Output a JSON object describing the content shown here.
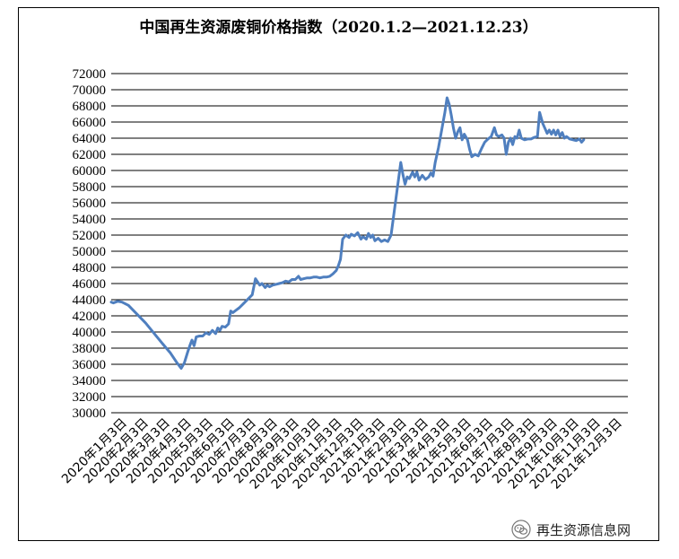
{
  "chart_data": {
    "type": "line",
    "title": "中国再生资源废铜价格指数（2020.1.2—2021.12.23）",
    "ylim": [
      30000,
      72000
    ],
    "yticks": [
      30000,
      32000,
      34000,
      36000,
      38000,
      40000,
      42000,
      44000,
      46000,
      48000,
      50000,
      52000,
      54000,
      56000,
      58000,
      60000,
      62000,
      64000,
      66000,
      68000,
      70000,
      72000
    ],
    "grid": true,
    "legend": "none",
    "line_color": "#4f7fbf",
    "categories": [
      "2020年1月3日",
      "2020年2月3日",
      "2020年3月3日",
      "2020年4月3日",
      "2020年5月3日",
      "2020年6月3日",
      "2020年7月3日",
      "2020年8月3日",
      "2020年9月3日",
      "2020年10月3日",
      "2020年11月3日",
      "2020年12月3日",
      "2021年1月3日",
      "2021年2月3日",
      "2021年3月3日",
      "2021年4月3日",
      "2021年5月3日",
      "2021年6月3日",
      "2021年7月3日",
      "2021年8月3日",
      "2021年9月3日",
      "2021年10月3日",
      "2021年11月3日",
      "2021年12月3日"
    ],
    "series": [
      {
        "values": [
          [
            0.0,
            43700
          ],
          [
            0.1,
            43600
          ],
          [
            0.3,
            43800
          ],
          [
            0.5,
            43700
          ],
          [
            0.8,
            43300
          ],
          [
            1.2,
            42200
          ],
          [
            1.6,
            41100
          ],
          [
            2.0,
            39800
          ],
          [
            2.4,
            38500
          ],
          [
            2.75,
            37400
          ],
          [
            3.05,
            36200
          ],
          [
            3.25,
            35500
          ],
          [
            3.4,
            36200
          ],
          [
            3.55,
            37500
          ],
          [
            3.65,
            38300
          ],
          [
            3.75,
            39000
          ],
          [
            3.85,
            38300
          ],
          [
            3.95,
            39400
          ],
          [
            4.1,
            39500
          ],
          [
            4.25,
            39500
          ],
          [
            4.4,
            39900
          ],
          [
            4.55,
            39700
          ],
          [
            4.7,
            40200
          ],
          [
            4.85,
            39800
          ],
          [
            4.95,
            40500
          ],
          [
            5.05,
            40200
          ],
          [
            5.15,
            40700
          ],
          [
            5.3,
            40600
          ],
          [
            5.45,
            41000
          ],
          [
            5.55,
            42600
          ],
          [
            5.65,
            42400
          ],
          [
            5.8,
            42700
          ],
          [
            5.95,
            43000
          ],
          [
            6.1,
            43400
          ],
          [
            6.25,
            43800
          ],
          [
            6.4,
            44200
          ],
          [
            6.55,
            44600
          ],
          [
            6.7,
            46600
          ],
          [
            6.8,
            46200
          ],
          [
            6.9,
            45800
          ],
          [
            7.0,
            46000
          ],
          [
            7.15,
            45500
          ],
          [
            7.25,
            45800
          ],
          [
            7.35,
            45600
          ],
          [
            7.5,
            45800
          ],
          [
            7.65,
            45900
          ],
          [
            7.8,
            46000
          ],
          [
            7.95,
            46100
          ],
          [
            8.1,
            46300
          ],
          [
            8.25,
            46200
          ],
          [
            8.4,
            46500
          ],
          [
            8.55,
            46500
          ],
          [
            8.7,
            46900
          ],
          [
            8.8,
            46500
          ],
          [
            8.95,
            46600
          ],
          [
            9.1,
            46700
          ],
          [
            9.25,
            46700
          ],
          [
            9.4,
            46800
          ],
          [
            9.55,
            46800
          ],
          [
            9.7,
            46700
          ],
          [
            9.85,
            46800
          ],
          [
            10.0,
            46800
          ],
          [
            10.15,
            46900
          ],
          [
            10.3,
            47200
          ],
          [
            10.45,
            47600
          ],
          [
            10.55,
            48200
          ],
          [
            10.65,
            49000
          ],
          [
            10.75,
            51500
          ],
          [
            10.9,
            52000
          ],
          [
            11.05,
            51700
          ],
          [
            11.15,
            52100
          ],
          [
            11.3,
            51900
          ],
          [
            11.45,
            52300
          ],
          [
            11.6,
            51500
          ],
          [
            11.7,
            51800
          ],
          [
            11.85,
            51500
          ],
          [
            11.95,
            52200
          ],
          [
            12.05,
            51700
          ],
          [
            12.15,
            52000
          ],
          [
            12.25,
            51300
          ],
          [
            12.4,
            51600
          ],
          [
            12.55,
            51200
          ],
          [
            12.7,
            51400
          ],
          [
            12.85,
            51200
          ],
          [
            13.0,
            52000
          ],
          [
            13.15,
            55000
          ],
          [
            13.3,
            58000
          ],
          [
            13.45,
            61000
          ],
          [
            13.55,
            59500
          ],
          [
            13.65,
            58300
          ],
          [
            13.75,
            59200
          ],
          [
            13.85,
            59000
          ],
          [
            14.0,
            59800
          ],
          [
            14.1,
            59200
          ],
          [
            14.2,
            59800
          ],
          [
            14.3,
            58800
          ],
          [
            14.45,
            59400
          ],
          [
            14.6,
            58900
          ],
          [
            14.75,
            59200
          ],
          [
            14.85,
            59700
          ],
          [
            14.95,
            59300
          ],
          [
            15.05,
            61000
          ],
          [
            15.2,
            62800
          ],
          [
            15.35,
            65000
          ],
          [
            15.5,
            67200
          ],
          [
            15.6,
            69000
          ],
          [
            15.7,
            68200
          ],
          [
            15.8,
            66800
          ],
          [
            15.9,
            65200
          ],
          [
            16.0,
            64000
          ],
          [
            16.1,
            64800
          ],
          [
            16.2,
            65300
          ],
          [
            16.3,
            63800
          ],
          [
            16.4,
            64500
          ],
          [
            16.55,
            63800
          ],
          [
            16.65,
            62600
          ],
          [
            16.75,
            61700
          ],
          [
            16.9,
            62000
          ],
          [
            17.05,
            61800
          ],
          [
            17.2,
            62700
          ],
          [
            17.35,
            63500
          ],
          [
            17.5,
            63900
          ],
          [
            17.65,
            64200
          ],
          [
            17.8,
            65300
          ],
          [
            17.9,
            64400
          ],
          [
            18.0,
            64200
          ],
          [
            18.15,
            64400
          ],
          [
            18.25,
            64000
          ],
          [
            18.35,
            62000
          ],
          [
            18.45,
            63500
          ],
          [
            18.55,
            64000
          ],
          [
            18.65,
            63200
          ],
          [
            18.75,
            64200
          ],
          [
            18.85,
            64000
          ],
          [
            18.95,
            65000
          ],
          [
            19.05,
            64000
          ],
          [
            19.2,
            63800
          ],
          [
            19.35,
            63900
          ],
          [
            19.5,
            63900
          ],
          [
            19.65,
            64100
          ],
          [
            19.8,
            64200
          ],
          [
            19.9,
            67200
          ],
          [
            20.05,
            65800
          ],
          [
            20.15,
            65200
          ],
          [
            20.25,
            64600
          ],
          [
            20.35,
            65000
          ],
          [
            20.45,
            64500
          ],
          [
            20.55,
            65000
          ],
          [
            20.65,
            64400
          ],
          [
            20.75,
            65000
          ],
          [
            20.85,
            64200
          ],
          [
            20.95,
            64700
          ],
          [
            21.05,
            64000
          ],
          [
            21.15,
            64200
          ],
          [
            21.3,
            63900
          ],
          [
            21.45,
            63800
          ],
          [
            21.6,
            63700
          ],
          [
            21.75,
            63900
          ],
          [
            21.85,
            63500
          ],
          [
            21.95,
            63800
          ]
        ]
      }
    ]
  },
  "watermark": {
    "text": "再生资源信息网",
    "icon": "wechat-icon"
  }
}
